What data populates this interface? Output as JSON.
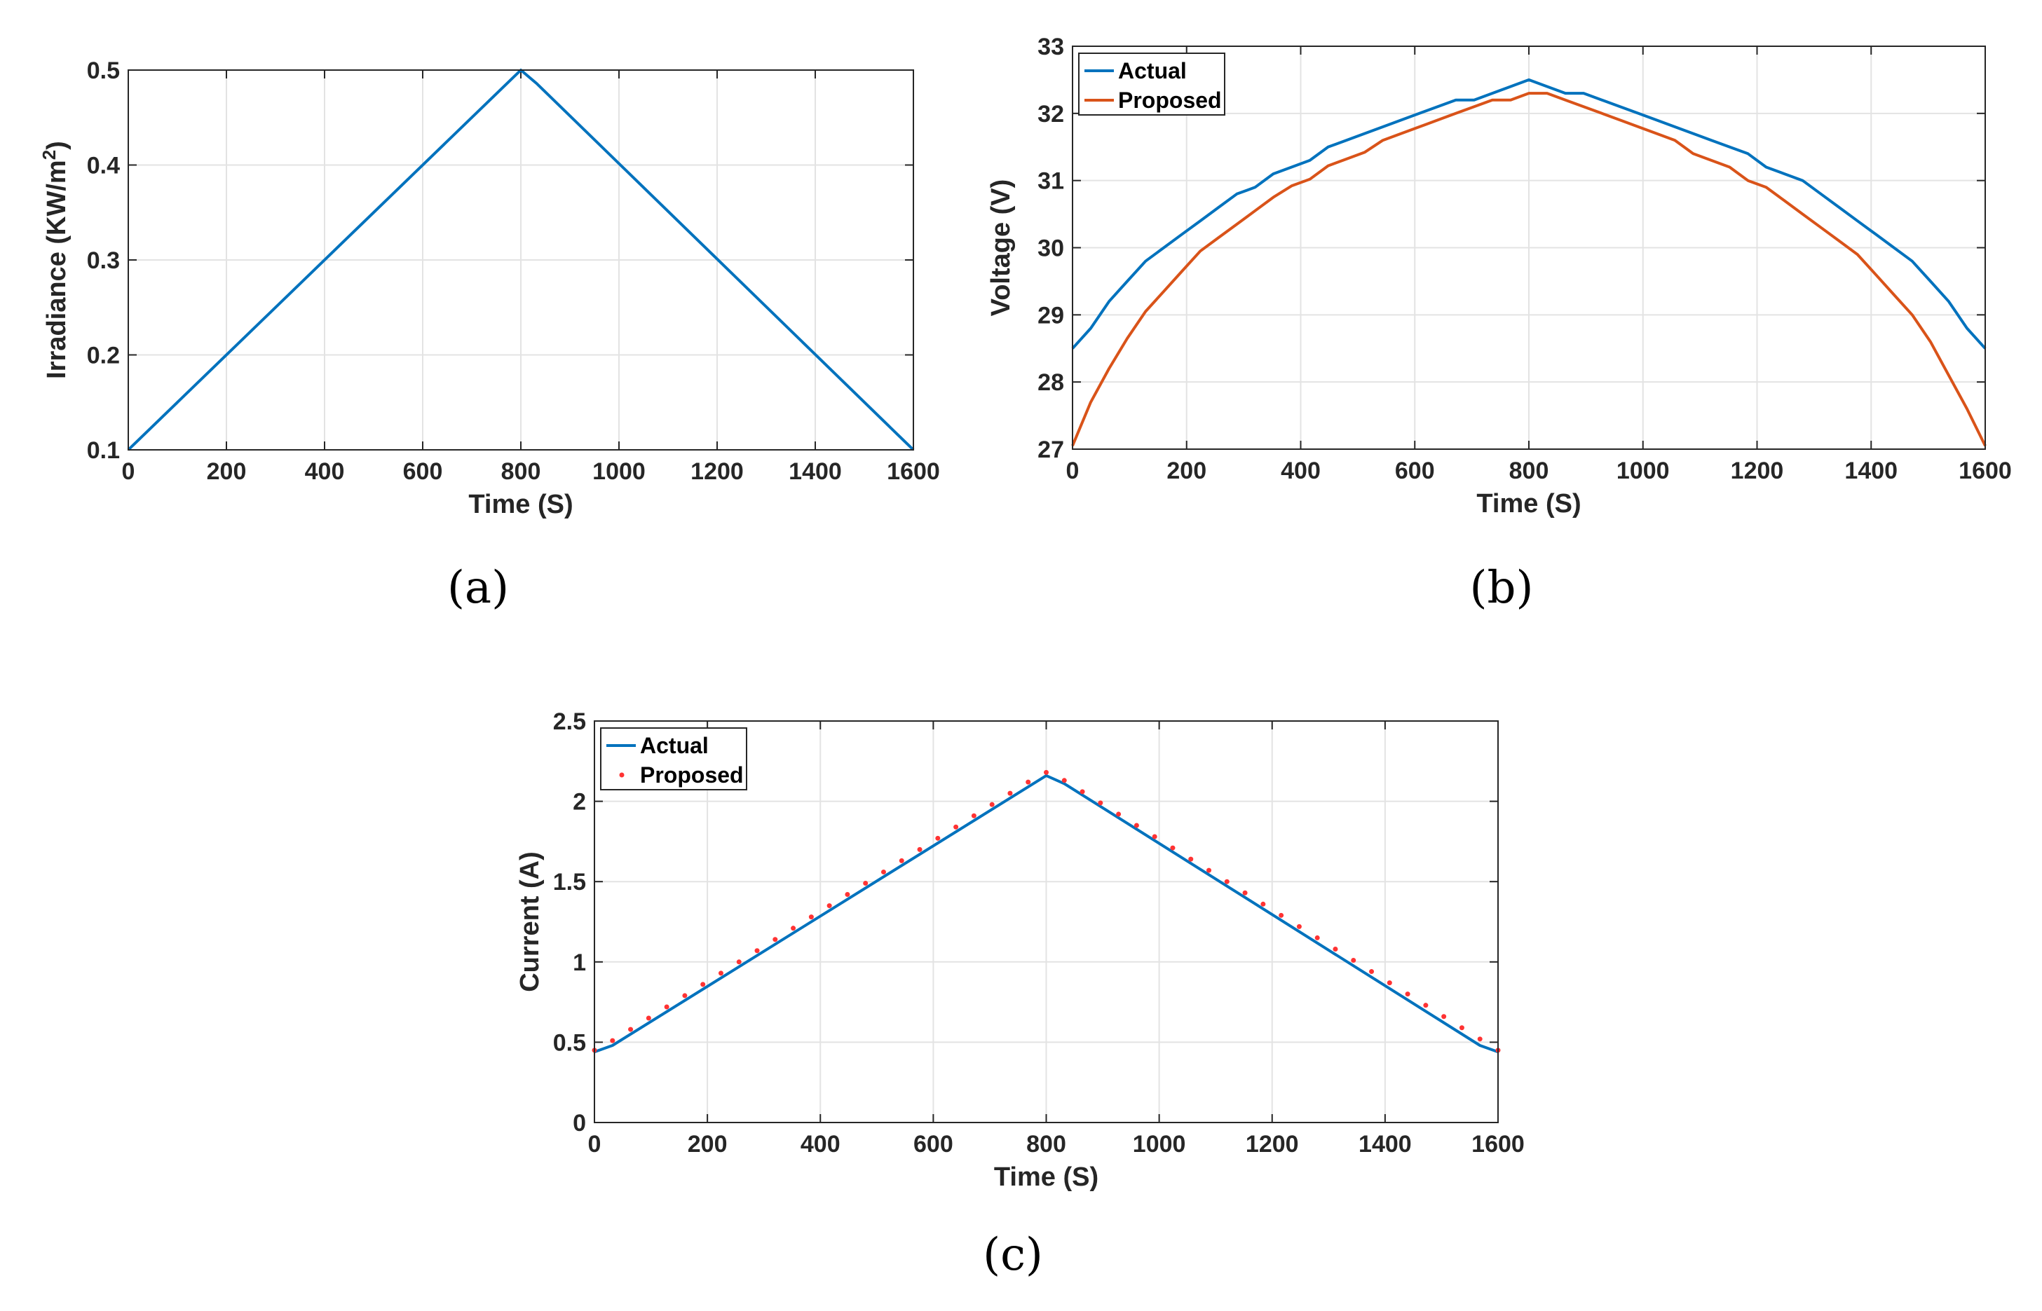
{
  "chart_data": [
    {
      "id": "a",
      "type": "line",
      "caption": "(a)",
      "xlabel": "Time (S)",
      "ylabel_main": "Irradiance (KW/m",
      "ylabel_sup": "2",
      "ylabel_tail": ")",
      "xlim": [
        0,
        1600
      ],
      "ylim": [
        0.1,
        0.5
      ],
      "xticks": [
        0,
        200,
        400,
        600,
        800,
        1000,
        1200,
        1400,
        1600
      ],
      "yticks": [
        0.1,
        0.2,
        0.3,
        0.4,
        0.5
      ],
      "xtick_labels": [
        "0",
        "200",
        "400",
        "600",
        "800",
        "1000",
        "1200",
        "1400",
        "1600"
      ],
      "ytick_labels": [
        "0.1",
        "0.2",
        "0.3",
        "0.4",
        "0.5"
      ],
      "series": [
        {
          "name": "Irradiance",
          "color": "#0072BD",
          "x": [
            0,
            32,
            800,
            832,
            1568,
            1600
          ],
          "y": [
            0.1,
            0.116,
            0.5,
            0.486,
            0.116,
            0.1
          ]
        }
      ]
    },
    {
      "id": "b",
      "type": "line",
      "caption": "(b)",
      "xlabel": "Time (S)",
      "ylabel": "Voltage (V)",
      "xlim": [
        0,
        1600
      ],
      "ylim": [
        27,
        33
      ],
      "xticks": [
        0,
        200,
        400,
        600,
        800,
        1000,
        1200,
        1400,
        1600
      ],
      "yticks": [
        27,
        28,
        29,
        30,
        31,
        32,
        33
      ],
      "xtick_labels": [
        "0",
        "200",
        "400",
        "600",
        "800",
        "1000",
        "1200",
        "1400",
        "1600"
      ],
      "ytick_labels": [
        "27",
        "28",
        "29",
        "30",
        "31",
        "32",
        "33"
      ],
      "legend": [
        "Actual",
        "Proposed"
      ],
      "legend_position": "top-left",
      "series": [
        {
          "name": "Actual",
          "color": "#0072BD",
          "x": [
            0,
            32,
            64,
            96,
            128,
            160,
            192,
            224,
            256,
            288,
            320,
            352,
            384,
            416,
            448,
            480,
            512,
            544,
            576,
            608,
            640,
            672,
            704,
            736,
            768,
            800,
            832,
            864,
            896,
            928,
            960,
            992,
            1024,
            1056,
            1088,
            1120,
            1152,
            1184,
            1216,
            1248,
            1280,
            1312,
            1344,
            1376,
            1408,
            1440,
            1472,
            1504,
            1536,
            1568,
            1600
          ],
          "y": [
            28.5,
            28.8,
            29.2,
            29.5,
            29.8,
            30.0,
            30.2,
            30.4,
            30.6,
            30.8,
            30.9,
            31.1,
            31.2,
            31.3,
            31.5,
            31.6,
            31.7,
            31.8,
            31.9,
            32.0,
            32.1,
            32.2,
            32.2,
            32.3,
            32.4,
            32.5,
            32.4,
            32.3,
            32.3,
            32.2,
            32.1,
            32.0,
            31.9,
            31.8,
            31.7,
            31.6,
            31.5,
            31.4,
            31.2,
            31.1,
            31.0,
            30.8,
            30.6,
            30.4,
            30.2,
            30.0,
            29.8,
            29.5,
            29.2,
            28.8,
            28.5
          ]
        },
        {
          "name": "Proposed",
          "color": "#D95319",
          "x": [
            0,
            32,
            64,
            96,
            128,
            160,
            192,
            224,
            256,
            288,
            320,
            352,
            384,
            416,
            448,
            480,
            512,
            544,
            576,
            608,
            640,
            672,
            704,
            736,
            768,
            800,
            832,
            864,
            896,
            928,
            960,
            992,
            1024,
            1056,
            1088,
            1120,
            1152,
            1184,
            1216,
            1248,
            1280,
            1312,
            1344,
            1376,
            1408,
            1440,
            1472,
            1504,
            1536,
            1568,
            1600
          ],
          "y": [
            27.05,
            27.7,
            28.2,
            28.65,
            29.05,
            29.35,
            29.65,
            29.95,
            30.15,
            30.35,
            30.55,
            30.75,
            30.92,
            31.02,
            31.22,
            31.32,
            31.42,
            31.6,
            31.7,
            31.8,
            31.9,
            32.0,
            32.1,
            32.2,
            32.2,
            32.3,
            32.3,
            32.2,
            32.1,
            32.0,
            31.9,
            31.8,
            31.7,
            31.6,
            31.4,
            31.3,
            31.2,
            31.0,
            30.9,
            30.7,
            30.5,
            30.3,
            30.1,
            29.9,
            29.6,
            29.3,
            29.0,
            28.6,
            28.1,
            27.6,
            27.05
          ]
        }
      ]
    },
    {
      "id": "c",
      "type": "line",
      "caption": "(c)",
      "xlabel": "Time (S)",
      "ylabel": "Current (A)",
      "xlim": [
        0,
        1600
      ],
      "ylim": [
        0,
        2.5
      ],
      "xticks": [
        0,
        200,
        400,
        600,
        800,
        1000,
        1200,
        1400,
        1600
      ],
      "yticks": [
        0,
        0.5,
        1,
        1.5,
        2,
        2.5
      ],
      "xtick_labels": [
        "0",
        "200",
        "400",
        "600",
        "800",
        "1000",
        "1200",
        "1400",
        "1600"
      ],
      "ytick_labels": [
        "0",
        "0.5",
        "1",
        "1.5",
        "2",
        "2.5"
      ],
      "legend": [
        "Actual",
        "Proposed"
      ],
      "legend_position": "top-left",
      "series": [
        {
          "name": "Actual",
          "color": "#0072BD",
          "style": "line",
          "x": [
            0,
            32,
            800,
            832,
            1568,
            1600
          ],
          "y": [
            0.44,
            0.48,
            2.16,
            2.11,
            0.48,
            0.44
          ]
        },
        {
          "name": "Proposed",
          "color": "#FF3333",
          "style": "markers",
          "x": [
            0,
            32,
            64,
            96,
            128,
            160,
            192,
            224,
            256,
            288,
            320,
            352,
            384,
            416,
            448,
            480,
            512,
            544,
            576,
            608,
            640,
            672,
            704,
            736,
            768,
            800,
            832,
            864,
            896,
            928,
            960,
            992,
            1024,
            1056,
            1088,
            1120,
            1152,
            1184,
            1216,
            1248,
            1280,
            1312,
            1344,
            1376,
            1408,
            1440,
            1472,
            1504,
            1536,
            1568,
            1600
          ],
          "y": [
            0.45,
            0.51,
            0.58,
            0.65,
            0.72,
            0.79,
            0.86,
            0.93,
            1.0,
            1.07,
            1.14,
            1.21,
            1.28,
            1.35,
            1.42,
            1.49,
            1.56,
            1.63,
            1.7,
            1.77,
            1.84,
            1.91,
            1.98,
            2.05,
            2.12,
            2.18,
            2.13,
            2.06,
            1.99,
            1.92,
            1.85,
            1.78,
            1.71,
            1.64,
            1.57,
            1.5,
            1.43,
            1.36,
            1.29,
            1.22,
            1.15,
            1.08,
            1.01,
            0.94,
            0.87,
            0.8,
            0.73,
            0.66,
            0.59,
            0.52,
            0.45
          ]
        }
      ]
    }
  ]
}
